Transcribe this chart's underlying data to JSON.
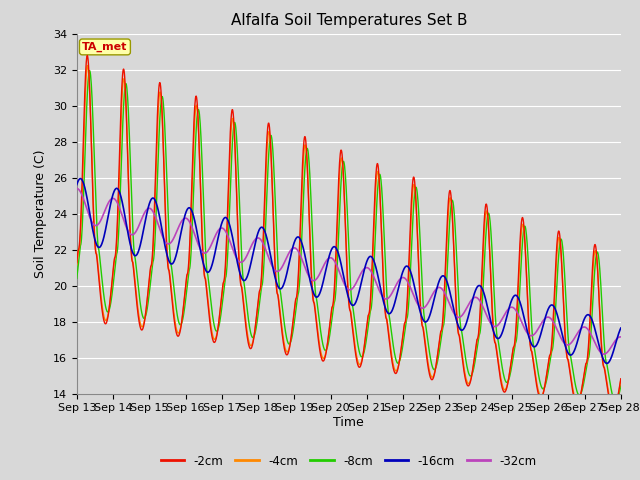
{
  "title": "Alfalfa Soil Temperatures Set B",
  "xlabel": "Time",
  "ylabel": "Soil Temperature (C)",
  "ylim": [
    14,
    34
  ],
  "xlim": [
    0,
    15
  ],
  "bg_color": "#d8d8d8",
  "plot_bg_color": "#d8d8d8",
  "grid_color": "#ffffff",
  "colors": {
    "m2cm": "#ee1100",
    "m4cm": "#ff8800",
    "m8cm": "#22cc00",
    "m16cm": "#0000bb",
    "m32cm": "#bb44bb"
  },
  "legend_labels": [
    "-2cm",
    "-4cm",
    "-8cm",
    "-16cm",
    "-32cm"
  ],
  "ta_met_box_color": "#ffffaa",
  "ta_met_text_color": "#cc0000",
  "x_tick_labels": [
    "Sep 13",
    "Sep 14",
    "Sep 15",
    "Sep 16",
    "Sep 17",
    "Sep 18",
    "Sep 19",
    "Sep 20",
    "Sep 21",
    "Sep 22",
    "Sep 23",
    "Sep 24",
    "Sep 25",
    "Sep 26",
    "Sep 27",
    "Sep 28"
  ]
}
